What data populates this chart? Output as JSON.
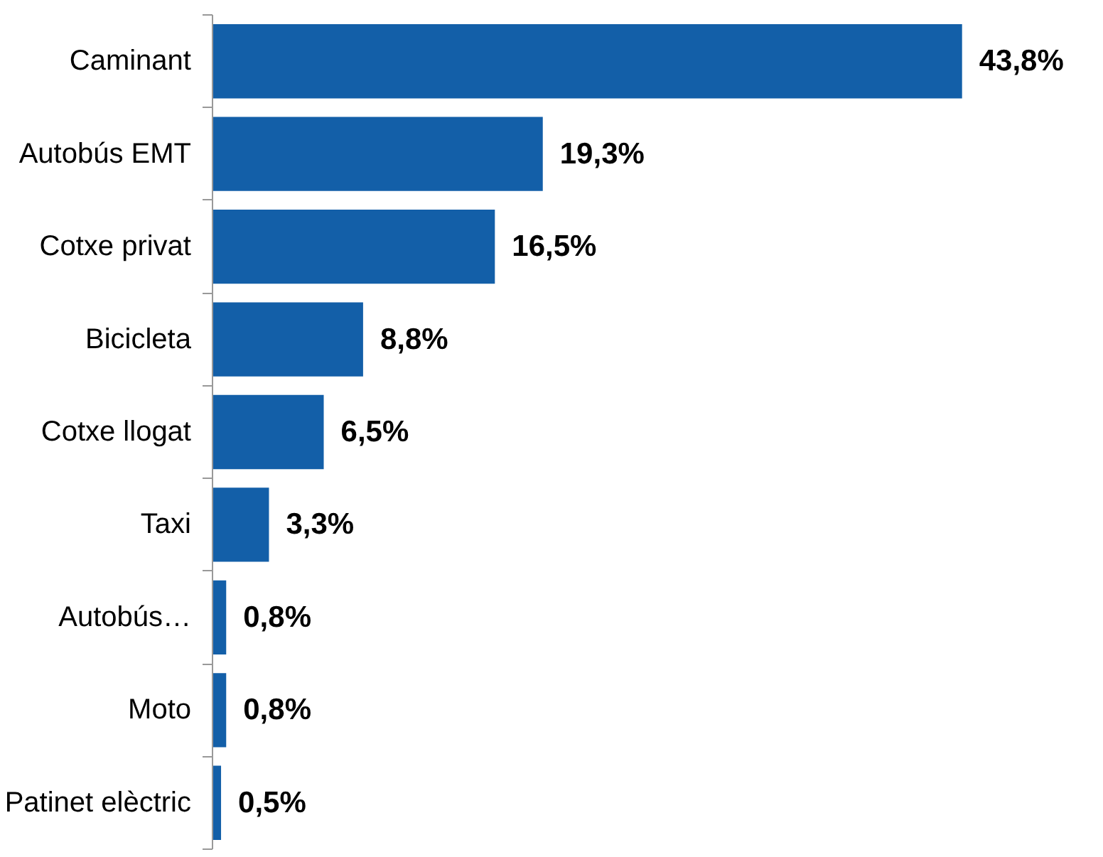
{
  "chart_data": {
    "type": "bar",
    "orientation": "horizontal",
    "categories": [
      "Caminant",
      "Autobús EMT",
      "Cotxe privat",
      "Bicicleta",
      "Cotxe llogat",
      "Taxi",
      "Autobús…",
      "Moto",
      "Patinet elèctric"
    ],
    "values": [
      43.8,
      19.3,
      16.5,
      8.8,
      6.5,
      3.3,
      0.8,
      0.8,
      0.5
    ],
    "value_labels": [
      "43,8%",
      "19,3%",
      "16,5%",
      "8,8%",
      "6,5%",
      "3,3%",
      "0,8%",
      "0,8%",
      "0,5%"
    ],
    "color": "#135fa8"
  }
}
